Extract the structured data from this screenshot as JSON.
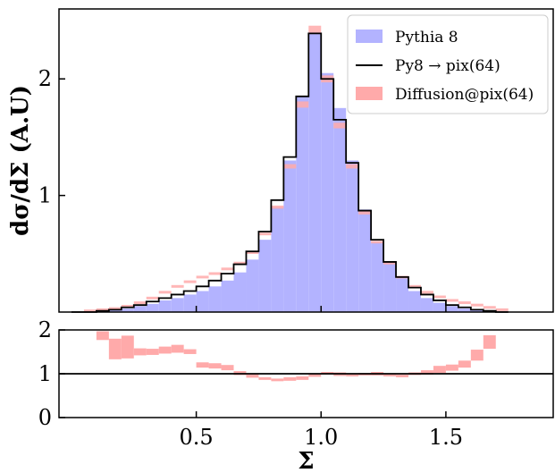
{
  "chart_data": {
    "type": "histogram",
    "ylabel": "dσ/dΣ (A.U)",
    "xlabel": "Σ",
    "xlim": [
      -0.05,
      1.93
    ],
    "x_ticks": [
      "0.5",
      "1.0",
      "1.5"
    ],
    "x_tick_values": [
      0.5,
      1.0,
      1.5
    ],
    "top_panel": {
      "ylim": [
        0,
        2.6
      ],
      "y_ticks": [
        "1",
        "2"
      ],
      "y_tick_values": [
        1,
        2
      ],
      "legend_position": "top-right",
      "bin_edges": [
        0.0,
        0.05,
        0.1,
        0.15,
        0.2,
        0.25,
        0.3,
        0.35,
        0.4,
        0.45,
        0.5,
        0.55,
        0.6,
        0.65,
        0.7,
        0.75,
        0.8,
        0.85,
        0.9,
        0.95,
        1.0,
        1.05,
        1.1,
        1.15,
        1.2,
        1.25,
        1.3,
        1.35,
        1.4,
        1.45,
        1.5,
        1.55,
        1.6,
        1.65,
        1.7,
        1.75
      ],
      "series": [
        {
          "name": "Pythia 8",
          "style": "filled",
          "color": "#b3b3ff",
          "values": [
            0.0,
            0.0,
            0.01,
            0.02,
            0.03,
            0.05,
            0.07,
            0.1,
            0.12,
            0.15,
            0.18,
            0.22,
            0.27,
            0.34,
            0.45,
            0.62,
            0.9,
            1.3,
            1.85,
            2.4,
            2.05,
            1.75,
            1.3,
            0.88,
            0.6,
            0.42,
            0.29,
            0.18,
            0.12,
            0.08,
            0.05,
            0.03,
            0.02,
            0.01,
            0.0
          ]
        },
        {
          "name": "Py8 → pix(64)",
          "style": "step",
          "color": "#000000",
          "values": [
            0.0,
            0.0,
            0.01,
            0.02,
            0.04,
            0.06,
            0.09,
            0.12,
            0.15,
            0.18,
            0.22,
            0.27,
            0.33,
            0.41,
            0.52,
            0.69,
            0.96,
            1.33,
            1.85,
            2.39,
            2.0,
            1.65,
            1.28,
            0.87,
            0.62,
            0.43,
            0.3,
            0.21,
            0.15,
            0.1,
            0.06,
            0.04,
            0.02,
            0.01,
            0.0
          ]
        },
        {
          "name": "Diffusion@pix(64)",
          "style": "band",
          "color": "#ffaaaa",
          "values": [
            0.0,
            0.01,
            0.02,
            0.03,
            0.05,
            0.08,
            0.12,
            0.17,
            0.22,
            0.26,
            0.3,
            0.33,
            0.37,
            0.42,
            0.51,
            0.67,
            0.9,
            1.25,
            1.78,
            2.42,
            2.0,
            1.6,
            1.25,
            0.85,
            0.6,
            0.42,
            0.3,
            0.22,
            0.17,
            0.13,
            0.1,
            0.08,
            0.06,
            0.04,
            0.02
          ]
        }
      ]
    },
    "ratio_panel": {
      "ylim": [
        0,
        2
      ],
      "y_ticks": [
        "0",
        "1",
        "2"
      ],
      "y_tick_values": [
        0,
        1,
        2
      ],
      "reference_line": 1,
      "bin_edges": [
        0.1,
        0.15,
        0.2,
        0.25,
        0.3,
        0.35,
        0.4,
        0.45,
        0.5,
        0.55,
        0.6,
        0.65,
        0.7,
        0.75,
        0.8,
        0.85,
        0.9,
        0.95,
        1.0,
        1.05,
        1.1,
        1.15,
        1.2,
        1.25,
        1.3,
        1.35,
        1.4,
        1.45,
        1.5,
        1.55,
        1.6,
        1.65,
        1.7
      ],
      "band_low": [
        1.77,
        1.33,
        1.35,
        1.42,
        1.43,
        1.46,
        1.48,
        1.45,
        1.14,
        1.12,
        1.08,
        0.97,
        0.91,
        0.86,
        0.83,
        0.84,
        0.86,
        0.93,
        0.98,
        0.95,
        0.94,
        0.96,
        0.96,
        0.94,
        0.92,
        0.97,
        0.98,
        1.02,
        1.07,
        1.14,
        1.3,
        1.57
      ],
      "band_high": [
        1.97,
        1.8,
        1.87,
        1.58,
        1.57,
        1.62,
        1.66,
        1.56,
        1.26,
        1.24,
        1.2,
        1.06,
        1.0,
        0.92,
        0.89,
        0.92,
        0.94,
        1.0,
        1.04,
        1.03,
        1.0,
        1.02,
        1.04,
        1.0,
        0.98,
        1.03,
        1.08,
        1.18,
        1.21,
        1.3,
        1.55,
        1.88
      ]
    }
  }
}
